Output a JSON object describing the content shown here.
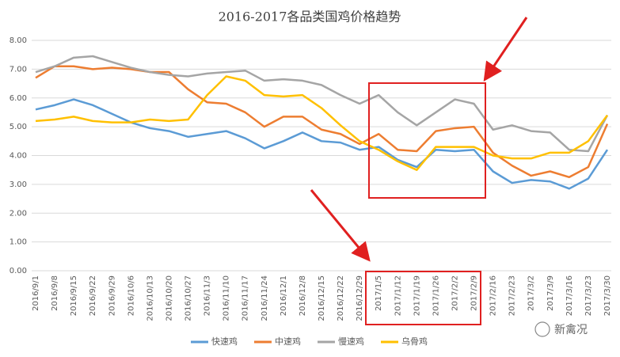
{
  "chart_data": {
    "type": "line",
    "title": "2016-2017各品类国鸡价格趋势",
    "categories": [
      "2016/9/1",
      "2016/9/8",
      "2016/9/15",
      "2016/9/22",
      "2016/9/29",
      "2016/10/6",
      "2016/10/13",
      "2016/10/20",
      "2016/10/27",
      "2016/11/3",
      "2016/11/10",
      "2016/11/17",
      "2016/11/24",
      "2016/12/1",
      "2016/12/8",
      "2016/12/15",
      "2016/12/22",
      "2016/12/29",
      "2017/1/5",
      "2017/1/12",
      "2017/1/19",
      "2017/1/26",
      "2017/2/2",
      "2017/2/9",
      "2017/2/16",
      "2017/2/23",
      "2017/3/2",
      "2017/3/9",
      "2017/3/16",
      "2017/3/23",
      "2017/3/30"
    ],
    "series": [
      {
        "name": "快速鸡",
        "color": "#5b9bd5",
        "values": [
          5.6,
          5.75,
          5.95,
          5.75,
          5.45,
          5.15,
          4.95,
          4.85,
          4.65,
          4.75,
          4.85,
          4.6,
          4.25,
          4.5,
          4.8,
          4.5,
          4.45,
          4.2,
          4.3,
          3.85,
          3.6,
          4.2,
          4.15,
          4.2,
          3.45,
          3.05,
          3.15,
          3.1,
          2.85,
          3.2,
          4.2
        ]
      },
      {
        "name": "中速鸡",
        "color": "#ed7d31",
        "values": [
          6.7,
          7.1,
          7.1,
          7.0,
          7.05,
          7.0,
          6.9,
          6.9,
          6.3,
          5.85,
          5.8,
          5.5,
          5.0,
          5.35,
          5.35,
          4.9,
          4.75,
          4.4,
          4.75,
          4.2,
          4.15,
          4.85,
          4.95,
          5.0,
          4.1,
          3.65,
          3.3,
          3.45,
          3.25,
          3.6,
          5.1
        ]
      },
      {
        "name": "慢速鸡",
        "color": "#a5a5a5",
        "values": [
          6.9,
          7.1,
          7.4,
          7.45,
          7.25,
          7.05,
          6.9,
          6.8,
          6.75,
          6.85,
          6.9,
          6.95,
          6.6,
          6.65,
          6.6,
          6.45,
          6.1,
          5.8,
          6.1,
          5.5,
          5.05,
          5.5,
          5.95,
          5.8,
          4.9,
          5.05,
          4.85,
          4.8,
          4.2,
          4.15,
          5.4
        ]
      },
      {
        "name": "乌骨鸡",
        "color": "#ffc000",
        "values": [
          5.2,
          5.25,
          5.35,
          5.2,
          5.15,
          5.15,
          5.25,
          5.2,
          5.25,
          6.1,
          6.75,
          6.6,
          6.1,
          6.05,
          6.1,
          5.65,
          5.05,
          4.5,
          4.2,
          3.8,
          3.5,
          4.3,
          4.3,
          4.3,
          4.0,
          3.9,
          3.9,
          4.1,
          4.1,
          4.5,
          5.4
        ]
      }
    ],
    "ylim": [
      0,
      8
    ],
    "yticks": [
      {
        "value": 0,
        "label": "0.00"
      },
      {
        "value": 1,
        "label": "1.00"
      },
      {
        "value": 2,
        "label": "2.00"
      },
      {
        "value": 3,
        "label": "3.00"
      },
      {
        "value": 4,
        "label": "4.00"
      },
      {
        "value": 5,
        "label": "5.00"
      },
      {
        "value": 6,
        "label": "6.00"
      },
      {
        "value": 7,
        "label": "7.00"
      },
      {
        "value": 8,
        "label": "8.00"
      }
    ],
    "grid": true,
    "legend": "bottom",
    "watermark": "新禽况"
  }
}
